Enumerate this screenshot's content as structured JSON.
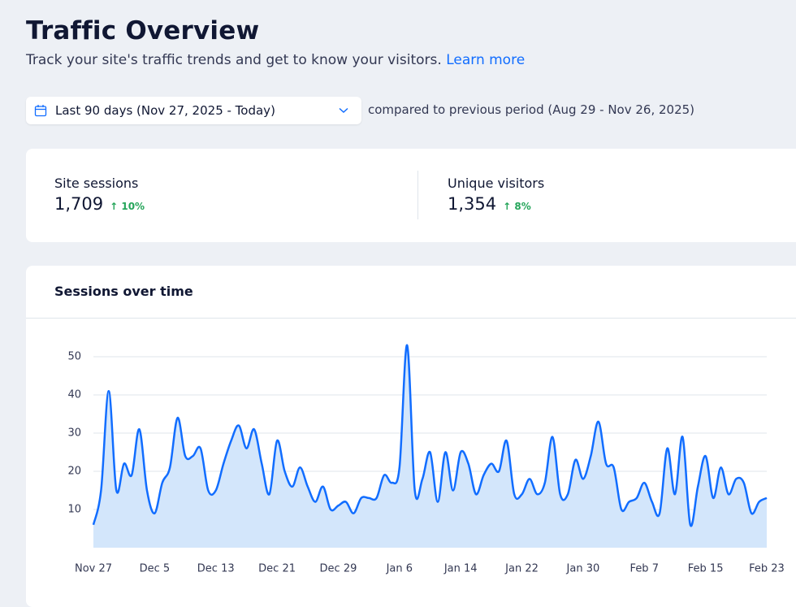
{
  "header": {
    "title": "Traffic Overview",
    "subtitle": "Track your site's traffic trends and get to know your visitors.",
    "link": "Learn more"
  },
  "date_picker": {
    "label": "Last 90 days (Nov 27, 2025 - Today)",
    "comparison": "compared to previous period (Aug 29 - Nov 26, 2025)"
  },
  "stats": [
    {
      "label": "Site sessions",
      "value": "1,709",
      "change": "10%"
    },
    {
      "label": "Unique visitors",
      "value": "1,354",
      "change": "8%"
    }
  ],
  "chart_data": {
    "type": "area",
    "title": "Sessions over time",
    "color": "#116dff",
    "fill": "#d3e6fb",
    "grid": true,
    "categories": [
      "Nov 27",
      null,
      null,
      null,
      null,
      null,
      null,
      null,
      "Dec 5",
      null,
      null,
      null,
      null,
      null,
      null,
      null,
      "Dec 13",
      null,
      null,
      null,
      null,
      null,
      null,
      null,
      "Dec 21",
      null,
      null,
      null,
      null,
      null,
      null,
      null,
      "Dec 29",
      null,
      null,
      null,
      null,
      null,
      null,
      null,
      "Jan 6",
      null,
      null,
      null,
      null,
      null,
      null,
      null,
      "Jan 14",
      null,
      null,
      null,
      null,
      null,
      null,
      null,
      "Jan 22",
      null,
      null,
      null,
      null,
      null,
      null,
      null,
      "Jan 30",
      null,
      null,
      null,
      null,
      null,
      null,
      null,
      "Feb 7",
      null,
      null,
      null,
      null,
      null,
      null,
      null,
      "Feb 15",
      null,
      null,
      null,
      null,
      null,
      null,
      null,
      "Feb 23"
    ],
    "values": [
      6,
      15,
      41,
      15,
      22,
      19,
      31,
      15,
      9,
      17,
      21,
      34,
      24,
      24,
      26,
      15,
      15,
      22,
      28,
      32,
      26,
      31,
      22,
      14,
      28,
      20,
      16,
      21,
      16,
      12,
      16,
      10,
      11,
      12,
      9,
      13,
      13,
      13,
      19,
      17,
      21,
      53,
      15,
      18,
      25,
      12,
      25,
      15,
      25,
      22,
      14,
      19,
      22,
      20,
      28,
      14,
      14,
      18,
      14,
      17,
      29,
      14,
      14,
      23,
      18,
      24,
      33,
      22,
      21,
      10,
      12,
      13,
      17,
      12,
      9,
      26,
      14,
      29,
      6,
      16,
      24,
      13,
      21,
      14,
      18,
      17,
      9,
      12,
      13
    ],
    "ylim": [
      0,
      60
    ],
    "yticks": [
      10,
      20,
      30,
      40,
      50
    ]
  }
}
